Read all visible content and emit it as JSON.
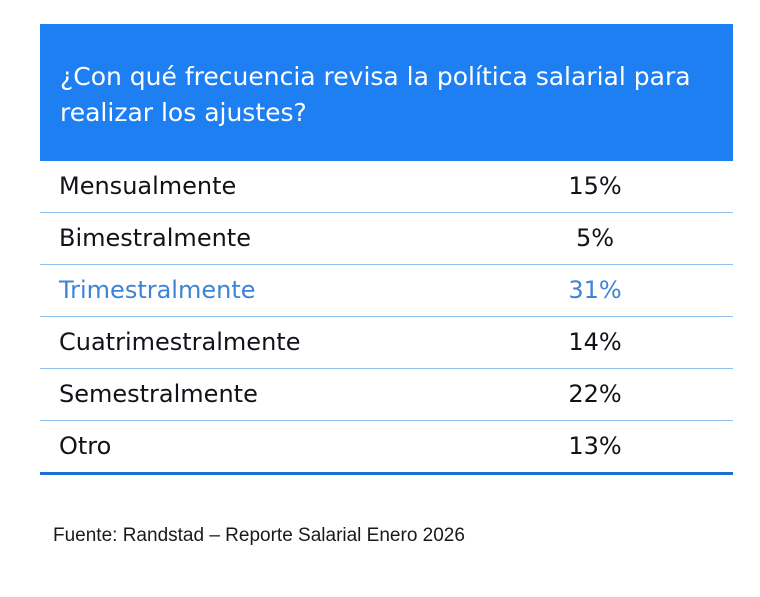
{
  "colors": {
    "header_bg": "#1e7ff2",
    "header_text": "#ffffff",
    "row_text": "#111318",
    "highlight_text": "#3f83d4",
    "row_divider": "#8cc0ef",
    "bottom_rule": "#1e6fd4"
  },
  "chart_data": {
    "type": "table",
    "title": "¿Con qué frecuencia revisa la política salarial para realizar los ajustes?",
    "highlight_index": 2,
    "rows": [
      {
        "label": "Mensualmente",
        "value": 15,
        "display": "15%"
      },
      {
        "label": "Bimestralmente",
        "value": 5,
        "display": "5%"
      },
      {
        "label": "Trimestralmente",
        "value": 31,
        "display": "31%"
      },
      {
        "label": "Cuatrimestralmente",
        "value": 14,
        "display": "14%"
      },
      {
        "label": "Semestralmente",
        "value": 22,
        "display": "22%"
      },
      {
        "label": "Otro",
        "value": 13,
        "display": "13%"
      }
    ],
    "source": "Fuente: Randstad – Reporte Salarial Enero 2026"
  }
}
